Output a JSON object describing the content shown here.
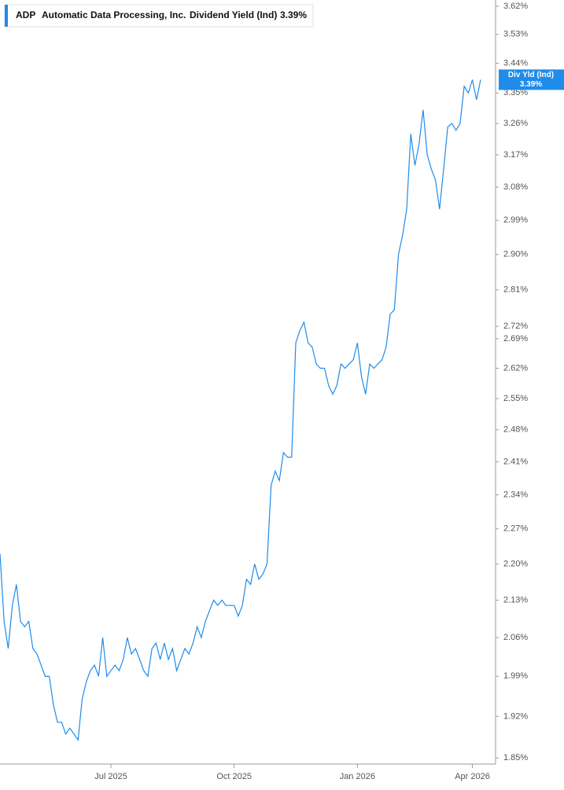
{
  "chart_data": {
    "type": "line",
    "ticker": "ADP",
    "company": "Automatic Data Processing, Inc.",
    "metric": "Dividend Yield (Ind)",
    "metric_value": "3.39%",
    "tag_label": "Div Yld (Ind)",
    "log_scale": true,
    "categories": [
      null,
      null,
      null,
      null,
      null,
      null,
      null,
      null,
      null,
      null,
      null,
      null,
      null,
      null,
      null,
      null,
      null,
      null,
      null,
      null,
      null,
      null,
      null,
      null,
      null,
      null,
      null,
      "Jul 2025",
      null,
      null,
      null,
      null,
      null,
      null,
      null,
      null,
      null,
      null,
      null,
      null,
      null,
      null,
      null,
      null,
      null,
      null,
      null,
      null,
      null,
      null,
      null,
      null,
      null,
      null,
      null,
      null,
      null,
      "Oct 2025",
      null,
      null,
      null,
      null,
      null,
      null,
      null,
      null,
      null,
      null,
      null,
      null,
      null,
      null,
      null,
      null,
      null,
      null,
      null,
      null,
      null,
      null,
      null,
      null,
      null,
      null,
      null,
      null,
      null,
      "Jan 2026",
      null,
      null,
      null,
      null,
      null,
      null,
      null,
      null,
      null,
      null,
      null,
      null,
      null,
      null,
      null,
      null,
      null,
      null,
      null,
      null,
      null,
      null,
      null,
      null,
      null,
      null,
      null,
      "Apr 2026",
      null,
      null
    ],
    "series": [
      {
        "color": "#1f8ceb",
        "values": [
          2.22,
          2.09,
          2.04,
          2.12,
          2.16,
          2.09,
          2.08,
          2.09,
          2.04,
          2.03,
          2.01,
          1.99,
          1.99,
          1.94,
          1.91,
          1.91,
          1.89,
          1.9,
          1.89,
          1.88,
          1.95,
          1.98,
          2.0,
          2.01,
          1.99,
          2.06,
          1.99,
          2.0,
          2.01,
          2.0,
          2.02,
          2.06,
          2.03,
          2.04,
          2.02,
          2.0,
          1.99,
          2.04,
          2.05,
          2.02,
          2.05,
          2.02,
          2.04,
          2.0,
          2.02,
          2.04,
          2.03,
          2.05,
          2.08,
          2.06,
          2.09,
          2.11,
          2.13,
          2.12,
          2.13,
          2.12,
          2.12,
          2.12,
          2.1,
          2.12,
          2.17,
          2.16,
          2.2,
          2.17,
          2.18,
          2.2,
          2.36,
          2.39,
          2.37,
          2.43,
          2.42,
          2.42,
          2.68,
          2.71,
          2.73,
          2.68,
          2.67,
          2.63,
          2.62,
          2.62,
          2.58,
          2.56,
          2.58,
          2.63,
          2.62,
          2.63,
          2.64,
          2.68,
          2.6,
          2.56,
          2.63,
          2.62,
          2.63,
          2.64,
          2.67,
          2.75,
          2.76,
          2.9,
          2.95,
          3.02,
          3.23,
          3.14,
          3.2,
          3.3,
          3.17,
          3.13,
          3.1,
          3.02,
          3.13,
          3.25,
          3.26,
          3.24,
          3.26,
          3.37,
          3.35,
          3.39,
          3.33,
          3.39
        ]
      }
    ],
    "ylim": [
      1.84,
      3.64
    ],
    "yticks": [
      {
        "value": 1.85,
        "label": "1.85%"
      },
      {
        "value": 1.92,
        "label": "1.92%"
      },
      {
        "value": 1.99,
        "label": "1.99%"
      },
      {
        "value": 2.06,
        "label": "2.06%"
      },
      {
        "value": 2.13,
        "label": "2.13%"
      },
      {
        "value": 2.2,
        "label": "2.20%"
      },
      {
        "value": 2.27,
        "label": "2.27%"
      },
      {
        "value": 2.34,
        "label": "2.34%"
      },
      {
        "value": 2.41,
        "label": "2.41%"
      },
      {
        "value": 2.48,
        "label": "2.48%"
      },
      {
        "value": 2.55,
        "label": "2.55%"
      },
      {
        "value": 2.62,
        "label": "2.62%"
      },
      {
        "value": 2.69,
        "label": "2.69%"
      },
      {
        "value": 2.72,
        "label": "2.72%"
      },
      {
        "value": 2.81,
        "label": "2.81%"
      },
      {
        "value": 2.9,
        "label": "2.90%"
      },
      {
        "value": 2.99,
        "label": "2.99%"
      },
      {
        "value": 3.08,
        "label": "3.08%"
      },
      {
        "value": 3.17,
        "label": "3.17%"
      },
      {
        "value": 3.26,
        "label": "3.26%"
      },
      {
        "value": 3.35,
        "label": "3.35%"
      },
      {
        "value": 3.44,
        "label": "3.44%"
      },
      {
        "value": 3.53,
        "label": "3.53%"
      },
      {
        "value": 3.62,
        "label": "3.62%"
      }
    ]
  }
}
